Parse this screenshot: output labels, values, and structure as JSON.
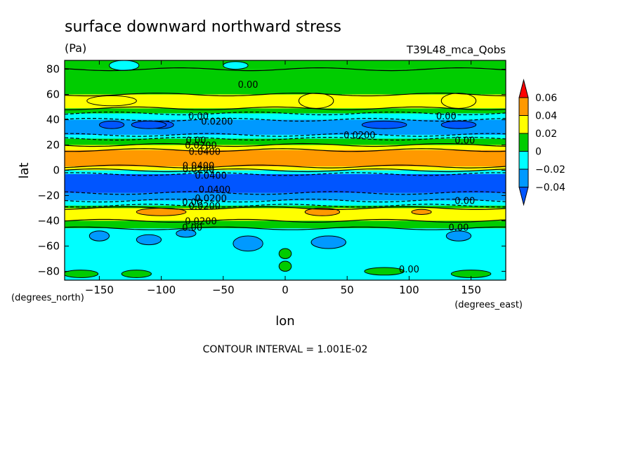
{
  "chart_data": {
    "type": "heatmap",
    "title": "surface downward northward stress",
    "units": "(Pa)",
    "dataset": "T39L48_mca_Qobs",
    "xlabel": "lon",
    "ylabel": "lat",
    "x_units": "(degrees_east)",
    "y_units": "(degrees_north)",
    "xlim": [
      -178,
      178
    ],
    "ylim": [
      -87,
      87
    ],
    "x_ticks": [
      -150,
      -100,
      -50,
      0,
      50,
      100,
      150
    ],
    "y_ticks": [
      -80,
      -60,
      -40,
      -20,
      0,
      20,
      40,
      60,
      80
    ],
    "footer": "CONTOUR INTERVAL = 1.001E-02",
    "colorbar": {
      "labels": [
        "0.06",
        "0.04",
        "0.02",
        "0",
        "-0.02",
        "-0.04"
      ],
      "colors": [
        "#ff0000",
        "#ff9900",
        "#ffff00",
        "#00cc00",
        "#00ffff",
        "#0099ff",
        "#0055ff"
      ]
    },
    "zonal_bands": [
      {
        "lat": [
          80,
          87
        ],
        "level": "0.00 to 0.02"
      },
      {
        "lat": [
          60,
          80
        ],
        "level": "0.00 to 0.02"
      },
      {
        "lat": [
          49,
          60
        ],
        "level": "0.02 to 0.04"
      },
      {
        "lat": [
          45,
          49
        ],
        "level": "0.00 to 0.02"
      },
      {
        "lat": [
          40,
          45
        ],
        "level": "-0.02 to 0.00"
      },
      {
        "lat": [
          28,
          40
        ],
        "level": "-0.04 to -0.02"
      },
      {
        "lat": [
          25,
          28
        ],
        "level": "-0.02 to 0.00"
      },
      {
        "lat": [
          20,
          25
        ],
        "level": "0.00 to 0.02"
      },
      {
        "lat": [
          16,
          20
        ],
        "level": "0.02 to 0.04"
      },
      {
        "lat": [
          3,
          16
        ],
        "level": "0.04 to 0.06"
      },
      {
        "lat": [
          0,
          3
        ],
        "level": "0.02 to 0.04"
      },
      {
        "lat": [
          -3,
          0
        ],
        "level": "-0.02 to 0.00"
      },
      {
        "lat": [
          -18,
          -3
        ],
        "level": "-0.06 to -0.04"
      },
      {
        "lat": [
          -24,
          -18
        ],
        "level": "-0.04 to -0.02"
      },
      {
        "lat": [
          -28,
          -24
        ],
        "level": "-0.02 to 0.00"
      },
      {
        "lat": [
          -30,
          -28
        ],
        "level": "0.00 to 0.02"
      },
      {
        "lat": [
          -40,
          -30
        ],
        "level": "0.02 to 0.04"
      },
      {
        "lat": [
          -46,
          -40
        ],
        "level": "0.00 to 0.02"
      },
      {
        "lat": [
          -87,
          -46
        ],
        "level": "-0.02 to 0.00"
      }
    ],
    "contour_labels": [
      {
        "text": "0.00",
        "lon": -30,
        "lat": 68
      },
      {
        "text": "0.00",
        "lon": -70,
        "lat": 43
      },
      {
        "text": "0.0200",
        "lon": -55,
        "lat": 39
      },
      {
        "text": "0.00",
        "lon": 130,
        "lat": 43
      },
      {
        "text": "0.0200",
        "lon": 60,
        "lat": 28
      },
      {
        "text": "0.00",
        "lon": 145,
        "lat": 24
      },
      {
        "text": "0.00",
        "lon": -72,
        "lat": 24
      },
      {
        "text": "0.0200",
        "lon": -68,
        "lat": 20
      },
      {
        "text": "0.0400",
        "lon": -65,
        "lat": 15
      },
      {
        "text": "0.0400",
        "lon": -70,
        "lat": 4
      },
      {
        "text": "0.0200",
        "lon": -70,
        "lat": 1
      },
      {
        "text": "0.0400",
        "lon": -60,
        "lat": -4
      },
      {
        "text": "0.0400",
        "lon": -57,
        "lat": -15
      },
      {
        "text": "0.0200",
        "lon": -60,
        "lat": -22
      },
      {
        "text": "0.00",
        "lon": -75,
        "lat": -25
      },
      {
        "text": "0.0200",
        "lon": -65,
        "lat": -28
      },
      {
        "text": "0.00",
        "lon": 145,
        "lat": -24
      },
      {
        "text": "0.0200",
        "lon": -68,
        "lat": -40
      },
      {
        "text": "0.00",
        "lon": -75,
        "lat": -45
      },
      {
        "text": "0.00",
        "lon": 140,
        "lat": -45
      },
      {
        "text": "0.00",
        "lon": 100,
        "lat": -78
      }
    ]
  }
}
